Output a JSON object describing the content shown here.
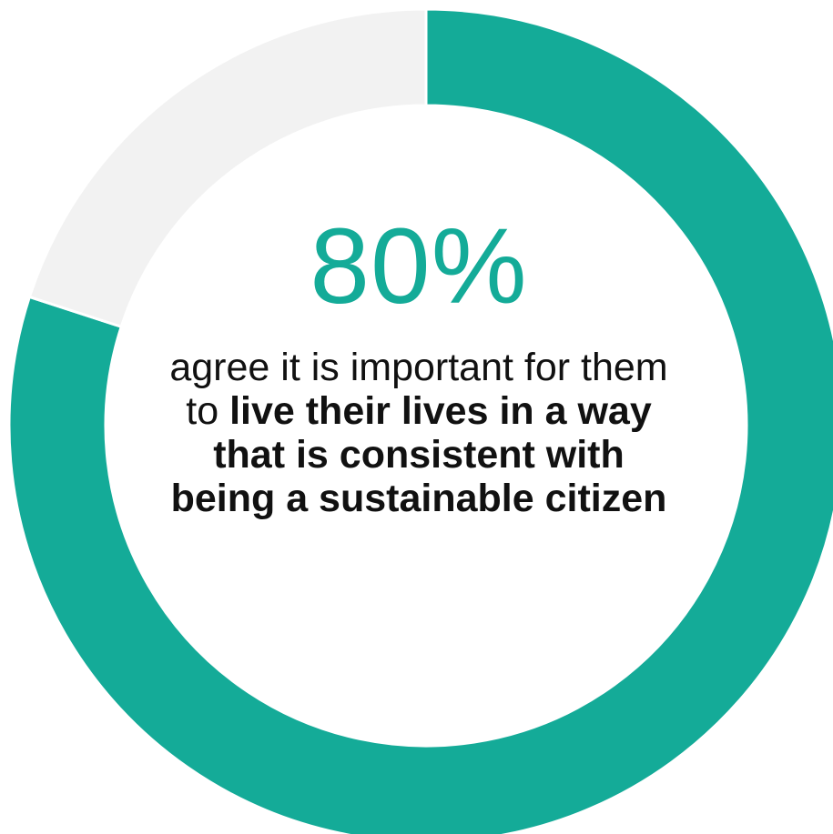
{
  "chart_data": {
    "type": "pie",
    "variant": "donut",
    "series": [
      {
        "value": 80,
        "color": "#14ab98"
      },
      {
        "value": 20,
        "color": "#f2f2f2"
      }
    ],
    "center_value": "80%",
    "caption": {
      "plain": "agree it is important for them to ",
      "bold": "live their lives in a way that is consistent with being a sustainable citizen"
    }
  }
}
